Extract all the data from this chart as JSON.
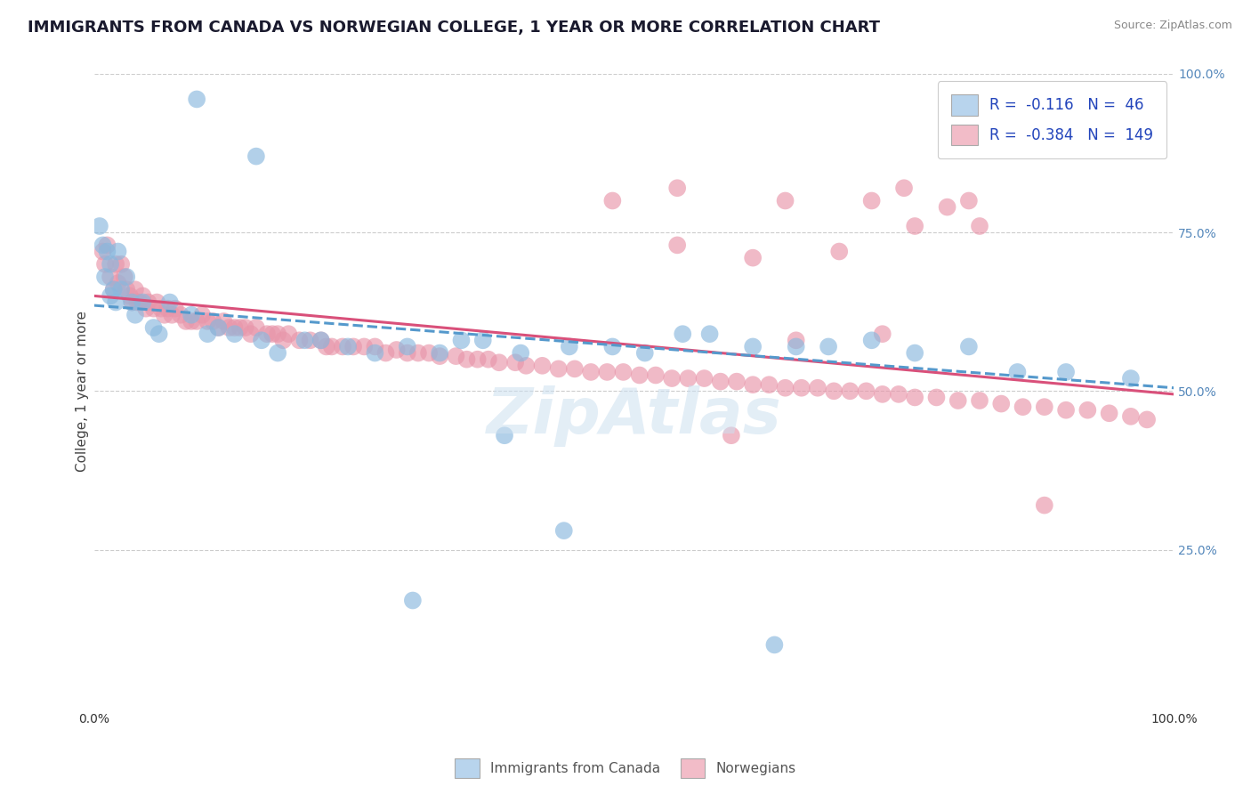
{
  "title": "IMMIGRANTS FROM CANADA VS NORWEGIAN COLLEGE, 1 YEAR OR MORE CORRELATION CHART",
  "source": "Source: ZipAtlas.com",
  "ylabel": "College, 1 year or more",
  "xlim": [
    0,
    1
  ],
  "ylim": [
    0,
    1
  ],
  "x_tick_labels": [
    "0.0%",
    "100.0%"
  ],
  "y_tick_labels_right": [
    "25.0%",
    "50.0%",
    "75.0%",
    "100.0%"
  ],
  "y_tick_vals_right": [
    0.25,
    0.5,
    0.75,
    1.0
  ],
  "legend_entries": [
    {
      "label": "Immigrants from Canada",
      "color": "#aec6e8",
      "R": "-0.116",
      "N": "46"
    },
    {
      "label": "Norwegians",
      "color": "#f4b8c8",
      "R": "-0.384",
      "N": "149"
    }
  ],
  "blue_scatter_x": [
    0.005,
    0.008,
    0.01,
    0.012,
    0.015,
    0.015,
    0.018,
    0.02,
    0.022,
    0.025,
    0.03,
    0.035,
    0.038,
    0.045,
    0.055,
    0.06,
    0.07,
    0.09,
    0.105,
    0.115,
    0.13,
    0.155,
    0.17,
    0.195,
    0.21,
    0.235,
    0.26,
    0.29,
    0.32,
    0.34,
    0.36,
    0.395,
    0.44,
    0.48,
    0.51,
    0.545,
    0.57,
    0.61,
    0.65,
    0.68,
    0.72,
    0.76,
    0.81,
    0.855,
    0.9,
    0.96
  ],
  "blue_scatter_y": [
    0.76,
    0.73,
    0.68,
    0.72,
    0.65,
    0.7,
    0.66,
    0.64,
    0.72,
    0.66,
    0.68,
    0.64,
    0.62,
    0.64,
    0.6,
    0.59,
    0.64,
    0.62,
    0.59,
    0.6,
    0.59,
    0.58,
    0.56,
    0.58,
    0.58,
    0.57,
    0.56,
    0.57,
    0.56,
    0.58,
    0.58,
    0.56,
    0.57,
    0.57,
    0.56,
    0.59,
    0.59,
    0.57,
    0.57,
    0.57,
    0.58,
    0.56,
    0.57,
    0.53,
    0.53,
    0.52
  ],
  "blue_scatter_x_outliers": [
    0.15,
    0.295,
    0.38,
    0.435,
    0.63,
    0.92,
    0.095
  ],
  "blue_scatter_y_outliers": [
    0.87,
    0.17,
    0.43,
    0.28,
    0.1,
    0.96,
    0.96
  ],
  "pink_scatter_x": [
    0.008,
    0.01,
    0.012,
    0.015,
    0.018,
    0.02,
    0.022,
    0.025,
    0.028,
    0.03,
    0.033,
    0.035,
    0.038,
    0.04,
    0.042,
    0.045,
    0.048,
    0.05,
    0.055,
    0.058,
    0.062,
    0.065,
    0.068,
    0.072,
    0.075,
    0.08,
    0.085,
    0.09,
    0.095,
    0.1,
    0.105,
    0.11,
    0.115,
    0.12,
    0.125,
    0.13,
    0.135,
    0.14,
    0.145,
    0.15,
    0.16,
    0.165,
    0.17,
    0.175,
    0.18,
    0.19,
    0.2,
    0.21,
    0.215,
    0.22,
    0.23,
    0.24,
    0.25,
    0.26,
    0.27,
    0.28,
    0.29,
    0.3,
    0.31,
    0.32,
    0.335,
    0.345,
    0.355,
    0.365,
    0.375,
    0.39,
    0.4,
    0.415,
    0.43,
    0.445,
    0.46,
    0.475,
    0.49,
    0.505,
    0.52,
    0.535,
    0.55,
    0.565,
    0.58,
    0.595,
    0.61,
    0.625,
    0.64,
    0.655,
    0.67,
    0.685,
    0.7,
    0.715,
    0.73,
    0.745,
    0.76,
    0.78,
    0.8,
    0.82,
    0.84,
    0.86,
    0.88,
    0.9,
    0.92,
    0.94,
    0.96,
    0.975
  ],
  "pink_scatter_y": [
    0.72,
    0.7,
    0.73,
    0.68,
    0.66,
    0.7,
    0.67,
    0.7,
    0.68,
    0.66,
    0.65,
    0.64,
    0.66,
    0.64,
    0.64,
    0.65,
    0.63,
    0.64,
    0.63,
    0.64,
    0.63,
    0.62,
    0.63,
    0.62,
    0.63,
    0.62,
    0.61,
    0.61,
    0.61,
    0.62,
    0.61,
    0.61,
    0.6,
    0.61,
    0.6,
    0.6,
    0.6,
    0.6,
    0.59,
    0.6,
    0.59,
    0.59,
    0.59,
    0.58,
    0.59,
    0.58,
    0.58,
    0.58,
    0.57,
    0.57,
    0.57,
    0.57,
    0.57,
    0.57,
    0.56,
    0.565,
    0.56,
    0.56,
    0.56,
    0.555,
    0.555,
    0.55,
    0.55,
    0.55,
    0.545,
    0.545,
    0.54,
    0.54,
    0.535,
    0.535,
    0.53,
    0.53,
    0.53,
    0.525,
    0.525,
    0.52,
    0.52,
    0.52,
    0.515,
    0.515,
    0.51,
    0.51,
    0.505,
    0.505,
    0.505,
    0.5,
    0.5,
    0.5,
    0.495,
    0.495,
    0.49,
    0.49,
    0.485,
    0.485,
    0.48,
    0.475,
    0.475,
    0.47,
    0.47,
    0.465,
    0.46,
    0.455
  ],
  "pink_scatter_x_outliers": [
    0.48,
    0.54,
    0.64,
    0.72,
    0.75,
    0.79,
    0.81,
    0.88,
    0.54,
    0.61,
    0.69,
    0.76,
    0.82,
    0.73,
    0.65,
    0.59
  ],
  "pink_scatter_y_outliers": [
    0.8,
    0.82,
    0.8,
    0.8,
    0.82,
    0.79,
    0.8,
    0.32,
    0.73,
    0.71,
    0.72,
    0.76,
    0.76,
    0.59,
    0.58,
    0.43
  ],
  "blue_line_x": [
    0.0,
    1.0
  ],
  "blue_line_y": [
    0.635,
    0.505
  ],
  "pink_line_x": [
    0.0,
    1.0
  ],
  "pink_line_y": [
    0.65,
    0.495
  ],
  "scatter_alpha": 0.65,
  "scatter_size": 200,
  "background_color": "#ffffff",
  "grid_color": "#cccccc",
  "blue_color": "#89b8de",
  "pink_color": "#e896aa",
  "blue_legend_color": "#b8d4ed",
  "pink_legend_color": "#f2bcc8",
  "title_color": "#1a1a2e",
  "title_fontsize": 13,
  "axis_label_fontsize": 11,
  "tick_fontsize": 10,
  "legend_text_color": "#2244bb",
  "watermark": "ZipAtlas",
  "watermark_color": "#cce0f0"
}
